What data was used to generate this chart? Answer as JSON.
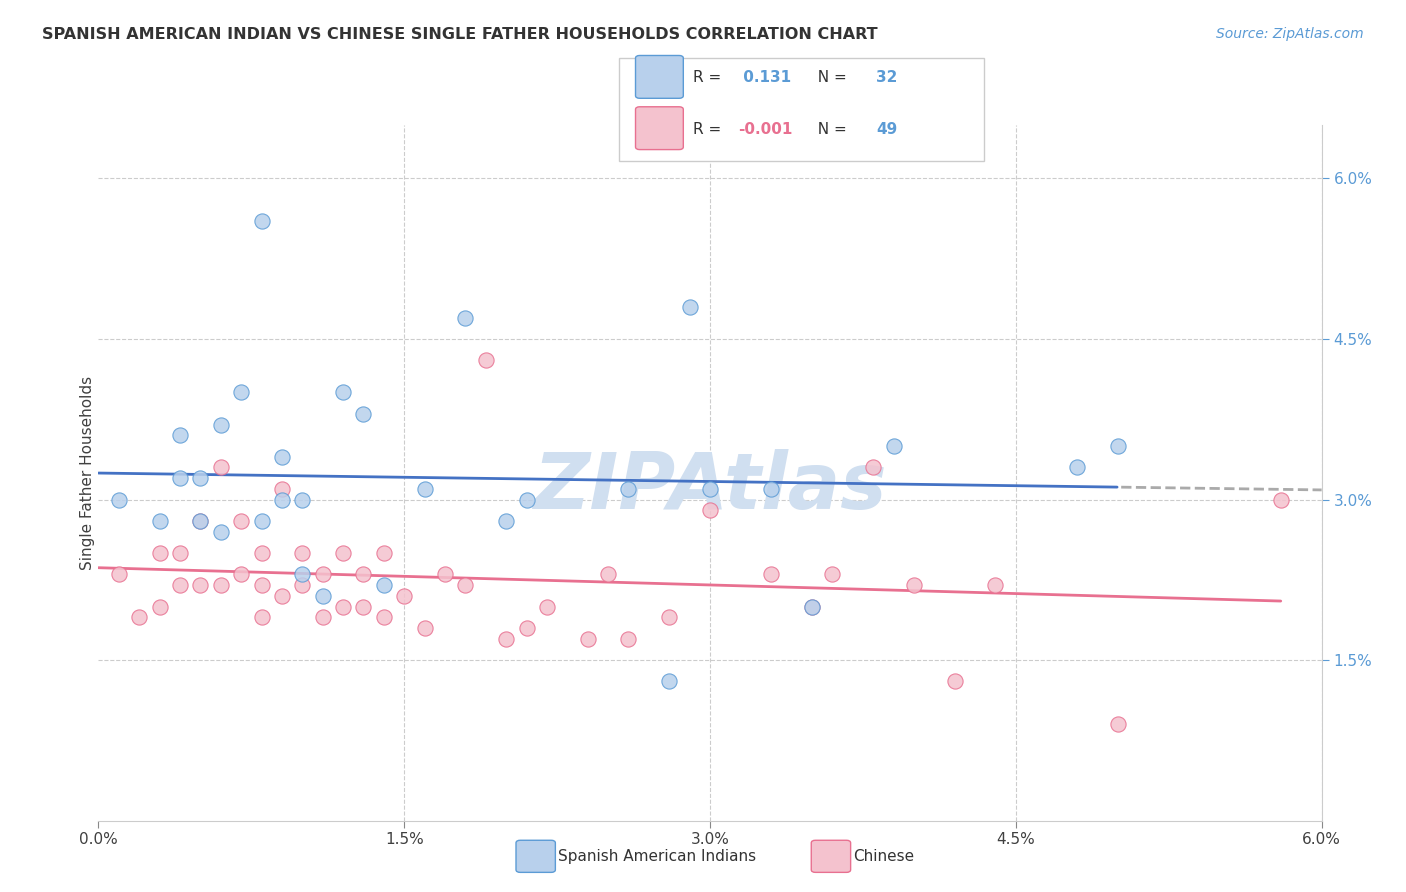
{
  "title": "SPANISH AMERICAN INDIAN VS CHINESE SINGLE FATHER HOUSEHOLDS CORRELATION CHART",
  "source": "Source: ZipAtlas.com",
  "ylabel": "Single Father Households",
  "xlim": [
    0.0,
    0.06
  ],
  "ylim": [
    0.0,
    0.065
  ],
  "xtick_labels": [
    "0.0%",
    "1.5%",
    "3.0%",
    "4.5%",
    "6.0%"
  ],
  "xtick_vals": [
    0.0,
    0.015,
    0.03,
    0.045,
    0.06
  ],
  "ytick_labels_right": [
    "1.5%",
    "3.0%",
    "4.5%",
    "6.0%"
  ],
  "ytick_vals_right": [
    0.015,
    0.03,
    0.045,
    0.06
  ],
  "blue_fill": "#b8d0ec",
  "blue_edge": "#5b9bd5",
  "pink_fill": "#f4c2ce",
  "pink_edge": "#e87090",
  "blue_line_color": "#4472c4",
  "pink_line_color": "#e87090",
  "blue_dash_color": "#aaaaaa",
  "watermark_color": "#d0dff0",
  "R_blue": 0.131,
  "N_blue": 32,
  "R_pink": -0.001,
  "N_pink": 49,
  "blue_x": [
    0.001,
    0.003,
    0.004,
    0.004,
    0.005,
    0.005,
    0.006,
    0.006,
    0.007,
    0.008,
    0.008,
    0.009,
    0.009,
    0.01,
    0.01,
    0.011,
    0.012,
    0.013,
    0.014,
    0.016,
    0.018,
    0.02,
    0.021,
    0.026,
    0.028,
    0.029,
    0.03,
    0.033,
    0.035,
    0.039,
    0.048,
    0.05
  ],
  "blue_y": [
    0.03,
    0.028,
    0.032,
    0.036,
    0.028,
    0.032,
    0.027,
    0.037,
    0.04,
    0.028,
    0.056,
    0.03,
    0.034,
    0.023,
    0.03,
    0.021,
    0.04,
    0.038,
    0.022,
    0.031,
    0.047,
    0.028,
    0.03,
    0.031,
    0.013,
    0.048,
    0.031,
    0.031,
    0.02,
    0.035,
    0.033,
    0.035
  ],
  "pink_x": [
    0.001,
    0.002,
    0.003,
    0.003,
    0.004,
    0.004,
    0.005,
    0.005,
    0.006,
    0.006,
    0.007,
    0.007,
    0.008,
    0.008,
    0.008,
    0.009,
    0.009,
    0.01,
    0.01,
    0.011,
    0.011,
    0.012,
    0.012,
    0.013,
    0.013,
    0.014,
    0.014,
    0.015,
    0.016,
    0.017,
    0.018,
    0.019,
    0.02,
    0.021,
    0.022,
    0.024,
    0.025,
    0.026,
    0.028,
    0.03,
    0.033,
    0.035,
    0.036,
    0.038,
    0.04,
    0.042,
    0.044,
    0.05,
    0.058
  ],
  "pink_y": [
    0.023,
    0.019,
    0.02,
    0.025,
    0.022,
    0.025,
    0.022,
    0.028,
    0.022,
    0.033,
    0.023,
    0.028,
    0.019,
    0.022,
    0.025,
    0.021,
    0.031,
    0.022,
    0.025,
    0.019,
    0.023,
    0.02,
    0.025,
    0.02,
    0.023,
    0.019,
    0.025,
    0.021,
    0.018,
    0.023,
    0.022,
    0.043,
    0.017,
    0.018,
    0.02,
    0.017,
    0.023,
    0.017,
    0.019,
    0.029,
    0.023,
    0.02,
    0.023,
    0.033,
    0.022,
    0.013,
    0.022,
    0.009,
    0.03
  ],
  "bg_color": "#ffffff",
  "grid_color": "#cccccc",
  "tick_color": "#888888",
  "right_axis_color": "#5b9bd5",
  "text_color": "#404040"
}
